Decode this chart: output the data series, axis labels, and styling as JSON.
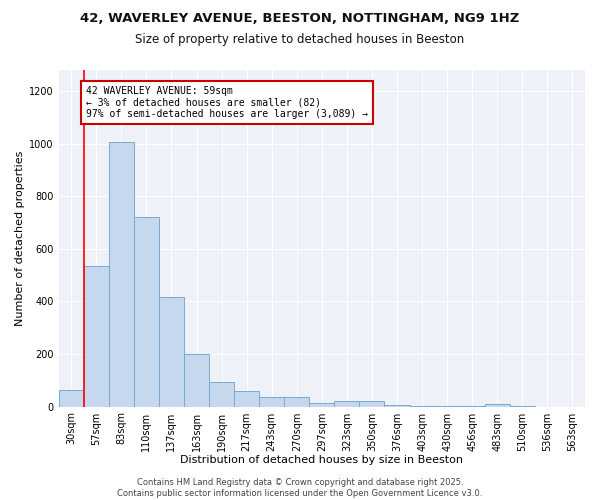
{
  "title": "42, WAVERLEY AVENUE, BEESTON, NOTTINGHAM, NG9 1HZ",
  "subtitle": "Size of property relative to detached houses in Beeston",
  "xlabel": "Distribution of detached houses by size in Beeston",
  "ylabel": "Number of detached properties",
  "categories": [
    "30sqm",
    "57sqm",
    "83sqm",
    "110sqm",
    "137sqm",
    "163sqm",
    "190sqm",
    "217sqm",
    "243sqm",
    "270sqm",
    "297sqm",
    "323sqm",
    "350sqm",
    "376sqm",
    "403sqm",
    "430sqm",
    "456sqm",
    "483sqm",
    "510sqm",
    "536sqm",
    "563sqm"
  ],
  "values": [
    65,
    535,
    1005,
    720,
    415,
    200,
    95,
    60,
    38,
    35,
    12,
    22,
    20,
    5,
    3,
    3,
    2,
    8,
    1,
    0,
    0
  ],
  "bar_color": "#c5d8ee",
  "bar_edge_color": "#7aaad0",
  "red_line_x": 1.0,
  "annotation_text": "42 WAVERLEY AVENUE: 59sqm\n← 3% of detached houses are smaller (82)\n97% of semi-detached houses are larger (3,089) →",
  "annotation_box_color": "#ffffff",
  "annotation_box_edge": "#cc0000",
  "ylim": [
    0,
    1280
  ],
  "yticks": [
    0,
    200,
    400,
    600,
    800,
    1000,
    1200
  ],
  "bg_color": "#ffffff",
  "plot_bg_color": "#eef2f8",
  "grid_color": "#ffffff",
  "footer": "Contains HM Land Registry data © Crown copyright and database right 2025.\nContains public sector information licensed under the Open Government Licence v3.0.",
  "title_fontsize": 9.5,
  "subtitle_fontsize": 8.5,
  "xlabel_fontsize": 8,
  "ylabel_fontsize": 8,
  "tick_fontsize": 7,
  "footer_fontsize": 6,
  "annot_fontsize": 7
}
